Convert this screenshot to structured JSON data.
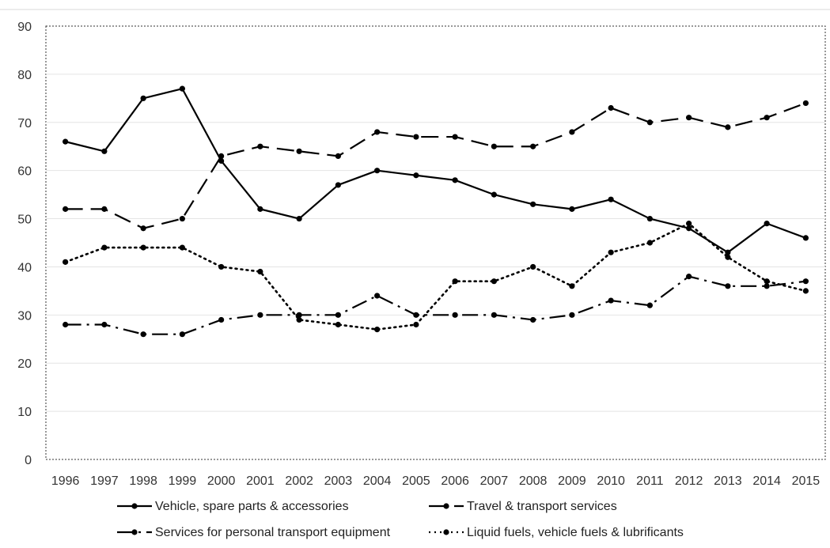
{
  "chart_data": {
    "type": "line",
    "title": "",
    "xlabel": "",
    "ylabel": "",
    "ylim": [
      0,
      90
    ],
    "yticks": [
      0,
      10,
      20,
      30,
      40,
      50,
      60,
      70,
      80,
      90
    ],
    "grid": "horizontal",
    "legend_position": "bottom",
    "x": [
      "1996",
      "1997",
      "1998",
      "1999",
      "2000",
      "2001",
      "2002",
      "2003",
      "2004",
      "2005",
      "2006",
      "2007",
      "2008",
      "2009",
      "2010",
      "2011",
      "2012",
      "2013",
      "2014",
      "2015"
    ],
    "series": [
      {
        "name": "Vehicle, spare parts & accessories",
        "style": "solid",
        "color": "#000000",
        "values": [
          66,
          64,
          75,
          77,
          62,
          52,
          50,
          57,
          60,
          59,
          58,
          55,
          53,
          52,
          54,
          50,
          48,
          43,
          49,
          46
        ]
      },
      {
        "name": "Travel & transport services",
        "style": "long-dash",
        "color": "#000000",
        "values": [
          52,
          52,
          48,
          50,
          63,
          65,
          64,
          63,
          68,
          67,
          67,
          65,
          65,
          68,
          73,
          70,
          71,
          69,
          71,
          74
        ]
      },
      {
        "name": "Services for personal transport equipment",
        "style": "dash-dot",
        "color": "#000000",
        "values": [
          28,
          28,
          26,
          26,
          29,
          30,
          30,
          30,
          34,
          30,
          30,
          30,
          29,
          30,
          33,
          32,
          38,
          36,
          36,
          37
        ]
      },
      {
        "name": "Liquid fuels, vehicle fuels & lubrificants",
        "style": "dotted",
        "color": "#000000",
        "values": [
          41,
          44,
          44,
          44,
          40,
          39,
          29,
          28,
          27,
          28,
          37,
          37,
          40,
          36,
          43,
          45,
          49,
          42,
          37,
          35
        ]
      }
    ]
  }
}
